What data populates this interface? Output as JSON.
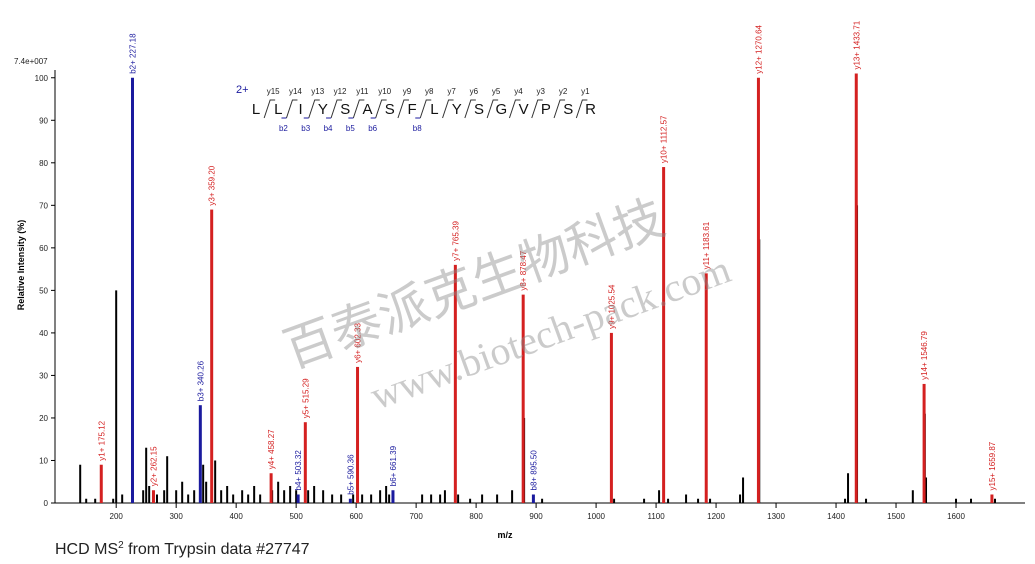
{
  "chart_data": {
    "type": "spectrum",
    "intensity_scale": "7.4e+007",
    "ylabel": "Relative  Intensity (%)",
    "xlabel": "m/z",
    "caption": [
      "HCD MS",
      "2",
      " from Trypsin data #27747"
    ],
    "watermark": [
      "百泰派克生物科技",
      "www.biotech-pack.com"
    ],
    "xlim": [
      98,
      1715
    ],
    "ylim": [
      0,
      103
    ],
    "xticks": [
      200,
      300,
      400,
      500,
      600,
      700,
      800,
      900,
      1000,
      1100,
      1200,
      1300,
      1400,
      1500,
      1600
    ],
    "yticks": [
      0,
      10,
      20,
      30,
      40,
      50,
      60,
      70,
      80,
      90,
      100
    ],
    "peptide": {
      "charge": "2+",
      "sequence": [
        "L",
        "L",
        "I",
        "Y",
        "S",
        "A",
        "S",
        "F",
        "L",
        "Y",
        "S",
        "G",
        "V",
        "P",
        "S",
        "R"
      ],
      "y_ions": [
        "y15",
        "y14",
        "y13",
        "y12",
        "y11",
        "y10",
        "y9",
        "y8",
        "y7",
        "y6",
        "y5",
        "y4",
        "y3",
        "y2",
        "y1"
      ],
      "b_ions": [
        null,
        "b2",
        "b3",
        "b4",
        "b5",
        "b6",
        null,
        "b8",
        null,
        null,
        null,
        null,
        null,
        null,
        null
      ]
    },
    "series": [
      {
        "color": "#000000",
        "x": [
          140,
          150,
          165,
          195,
          200,
          210,
          245,
          250,
          255,
          268,
          280,
          285,
          300,
          310,
          320,
          330,
          345,
          350,
          365,
          375,
          385,
          395,
          410,
          420,
          430,
          440,
          460,
          470,
          480,
          490,
          500,
          520,
          530,
          545,
          560,
          575,
          595,
          610,
          625,
          640,
          650,
          655,
          710,
          725,
          740,
          748,
          770,
          790,
          810,
          835,
          860,
          880,
          910,
          1030,
          1080,
          1105,
          1120,
          1150,
          1170,
          1190,
          1240,
          1245,
          1272,
          1415,
          1420,
          1435,
          1450,
          1528,
          1548,
          1550,
          1600,
          1625,
          1665
        ],
        "values": [
          9,
          1,
          1,
          1,
          50,
          2,
          3,
          13,
          4,
          2,
          3,
          11,
          3,
          5,
          2,
          3,
          9,
          5,
          10,
          3,
          4,
          2,
          3,
          2,
          4,
          2,
          3,
          5,
          3,
          4,
          3,
          3,
          4,
          3,
          2,
          2,
          2,
          2,
          2,
          3,
          4,
          2,
          2,
          2,
          2,
          3,
          2,
          1,
          2,
          2,
          3,
          20,
          1,
          1,
          1,
          3,
          1,
          2,
          1,
          1,
          2,
          6,
          62,
          1,
          7,
          70,
          1,
          3,
          21,
          6,
          1,
          1,
          1
        ]
      },
      {
        "color": "#d42020",
        "ions": [
          "y1+",
          "y2+",
          "y3+",
          "y4+",
          "y5+",
          "y6+",
          "y7+",
          "y8+",
          "y9+",
          "y10+",
          "y11+",
          "y12+",
          "y13+",
          "y14+",
          "y15+"
        ],
        "x": [
          175.12,
          262.15,
          359.2,
          458.27,
          515.29,
          602.33,
          765.39,
          878.47,
          1025.54,
          1112.57,
          1183.61,
          1270.64,
          1433.71,
          1546.79,
          1659.87
        ],
        "x_labels": [
          "175.12",
          "262.15",
          "359.20",
          "458.27",
          "515.29",
          "602.33",
          "765.39",
          "878.47",
          "1025.54",
          "1112.57",
          "1183.61",
          "1270.64",
          "1433.71",
          "1546.79",
          "1659.87"
        ],
        "values": [
          9,
          3,
          69,
          7,
          19,
          32,
          56,
          49,
          40,
          79,
          54,
          100,
          101,
          28,
          2
        ]
      },
      {
        "color": "#1a1a9e",
        "ions": [
          "b2+",
          "b3+",
          "b4+",
          "b5+",
          "b6+",
          "b8+"
        ],
        "x": [
          227.18,
          340.26,
          503.32,
          590.36,
          661.39,
          895.5
        ],
        "x_labels": [
          "227.18",
          "340.26",
          "503.32",
          "590.36",
          "661.39",
          "895.50"
        ],
        "values": [
          100,
          23,
          2,
          1,
          3,
          2
        ]
      }
    ]
  }
}
